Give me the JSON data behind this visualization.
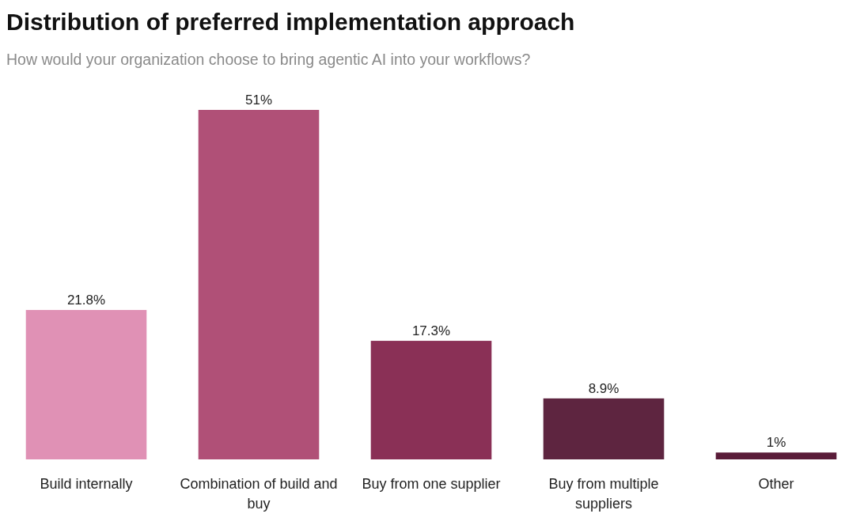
{
  "chart_data": {
    "type": "bar",
    "title": "Distribution of preferred implementation approach",
    "subtitle": "How would your organization choose to bring agentic AI into your workflows?",
    "categories": [
      "Build internally",
      "Combination of build and buy",
      "Buy from one supplier",
      "Buy from multiple suppliers",
      "Other"
    ],
    "values": [
      21.8,
      51,
      17.3,
      8.9,
      1
    ],
    "colors": [
      "#e091b5",
      "#b05077",
      "#8a3056",
      "#5e2540",
      "#5a1c39"
    ],
    "value_labels": [
      "21.8%",
      "51%",
      "17.3%",
      "8.9%",
      "1%"
    ]
  }
}
